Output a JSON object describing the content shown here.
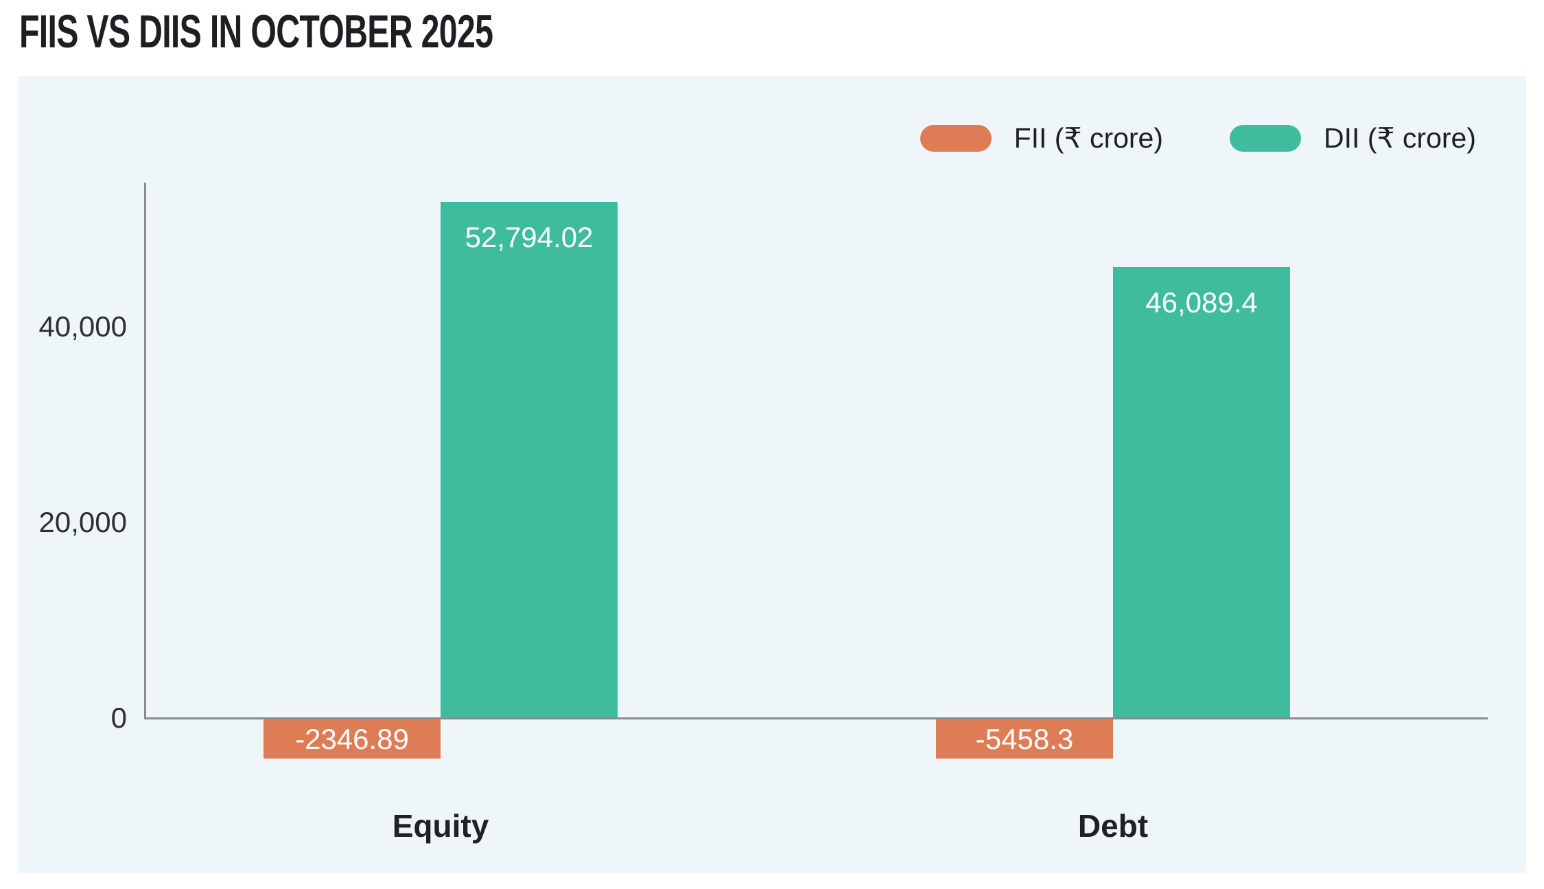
{
  "title": "FIIS VS DIIS IN OCTOBER 2025",
  "colors": {
    "fii": "#dd7c55",
    "dii": "#3ebc9d",
    "panel_background": "#eef6fa",
    "axis_line": "#8b8b8b",
    "bar_label_text": "#ffffff"
  },
  "legend": {
    "items": [
      {
        "label": "FII (₹ crore)",
        "color": "#dd7c55"
      },
      {
        "label": "DII (₹ crore)",
        "color": "#3ebc9d"
      }
    ]
  },
  "chart_data": {
    "type": "bar",
    "title": "FIIS VS DIIS IN OCTOBER 2025",
    "categories": [
      "Equity",
      "Debt"
    ],
    "series": [
      {
        "name": "FII (₹ crore)",
        "color": "#dd7c55",
        "values": [
          -2346.89,
          -5458.3
        ],
        "labels": [
          "-2346.89",
          "-5458.3"
        ]
      },
      {
        "name": "DII (₹ crore)",
        "color": "#3ebc9d",
        "values": [
          52794.02,
          46089.4
        ],
        "labels": [
          "52,794.02",
          "46,089.4"
        ]
      }
    ],
    "xlabel": "",
    "ylabel": "",
    "yticks": [
      0,
      20000,
      40000
    ],
    "ytick_labels": [
      "0",
      "20,000",
      "40,000"
    ],
    "ylim": [
      -6500,
      58000
    ],
    "grid": false,
    "legend_position": "top-right"
  }
}
